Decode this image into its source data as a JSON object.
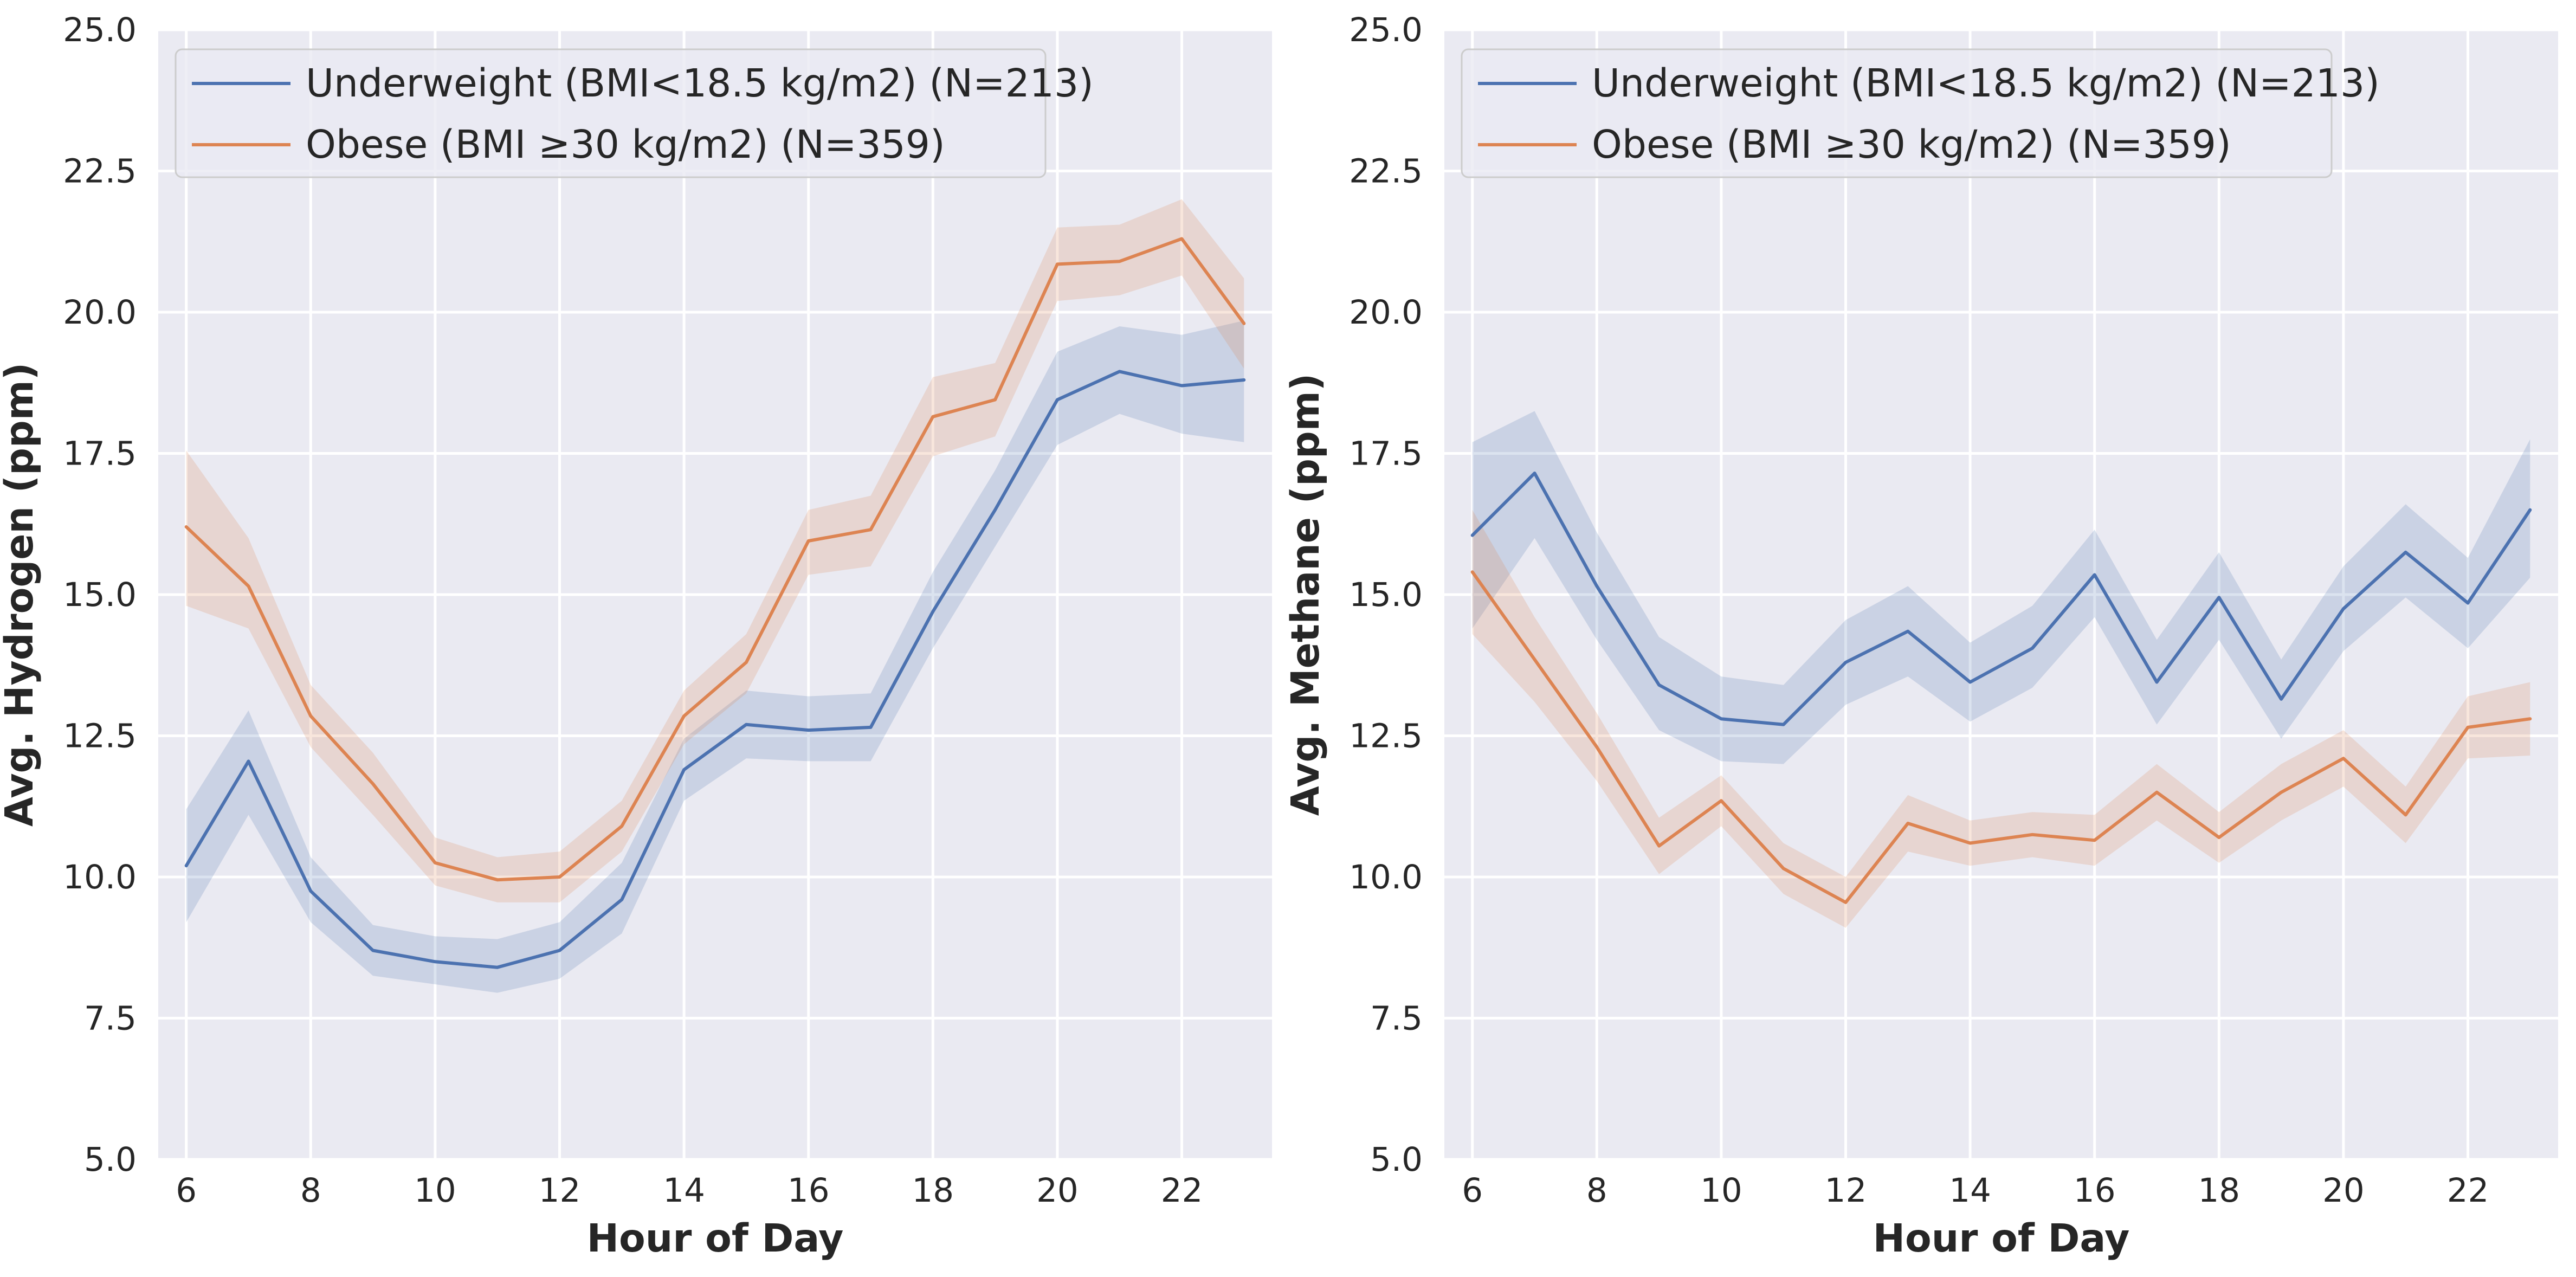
{
  "chart_data": [
    {
      "type": "line",
      "xlabel": "Hour of Day",
      "ylabel": "Avg. Hydrogen (ppm)",
      "xlim": [
        5.55,
        23.45
      ],
      "ylim": [
        5.0,
        25.0
      ],
      "xticks": [
        6,
        8,
        10,
        12,
        14,
        16,
        18,
        20,
        22
      ],
      "xtick_labels": [
        "6",
        "8",
        "10",
        "12",
        "14",
        "16",
        "18",
        "20",
        "22"
      ],
      "yticks": [
        5.0,
        7.5,
        10.0,
        12.5,
        15.0,
        17.5,
        20.0,
        22.5,
        25.0
      ],
      "ytick_labels": [
        "5.0",
        "7.5",
        "10.0",
        "12.5",
        "15.0",
        "17.5",
        "20.0",
        "22.5",
        "25.0"
      ],
      "grid": true,
      "legend_position": "top-left",
      "x": [
        6,
        7,
        8,
        9,
        10,
        11,
        12,
        13,
        14,
        15,
        16,
        17,
        18,
        19,
        20,
        21,
        22,
        23
      ],
      "series": [
        {
          "name": "Underweight (BMI<18.5 kg/m2) (N=213)",
          "color": "#4c72b0",
          "values": [
            10.2,
            12.05,
            9.75,
            8.7,
            8.5,
            8.4,
            8.7,
            9.6,
            11.9,
            12.7,
            12.6,
            12.65,
            14.7,
            16.5,
            18.45,
            18.95,
            18.7,
            18.8
          ],
          "ci_lower": [
            9.2,
            11.1,
            9.2,
            8.25,
            8.1,
            7.95,
            8.2,
            9.0,
            11.35,
            12.1,
            12.05,
            12.05,
            14.05,
            15.85,
            17.65,
            18.2,
            17.85,
            17.7
          ],
          "ci_upper": [
            11.2,
            12.95,
            10.35,
            9.15,
            8.95,
            8.9,
            9.2,
            10.25,
            12.45,
            13.3,
            13.2,
            13.25,
            15.4,
            17.2,
            19.3,
            19.75,
            19.6,
            19.85
          ]
        },
        {
          "name": "Obese (BMI ≥30 kg/m2) (N=359)",
          "color": "#dd8452",
          "values": [
            16.2,
            15.15,
            12.85,
            11.65,
            10.25,
            9.95,
            10.0,
            10.9,
            12.85,
            13.8,
            15.95,
            16.15,
            18.15,
            18.45,
            20.85,
            20.9,
            21.3,
            19.8
          ],
          "ci_lower": [
            14.8,
            14.4,
            12.3,
            11.1,
            9.85,
            9.55,
            9.55,
            10.45,
            12.35,
            13.25,
            15.35,
            15.5,
            17.45,
            17.8,
            20.2,
            20.3,
            20.65,
            19.0
          ],
          "ci_upper": [
            17.55,
            16.0,
            13.4,
            12.2,
            10.7,
            10.35,
            10.45,
            11.35,
            13.3,
            14.3,
            16.5,
            16.75,
            18.85,
            19.1,
            21.5,
            21.55,
            22.0,
            20.6
          ]
        }
      ]
    },
    {
      "type": "line",
      "xlabel": "Hour of Day",
      "ylabel": "Avg. Methane (ppm)",
      "xlim": [
        5.55,
        23.45
      ],
      "ylim": [
        5.0,
        25.0
      ],
      "xticks": [
        6,
        8,
        10,
        12,
        14,
        16,
        18,
        20,
        22
      ],
      "xtick_labels": [
        "6",
        "8",
        "10",
        "12",
        "14",
        "16",
        "18",
        "20",
        "22"
      ],
      "yticks": [
        5.0,
        7.5,
        10.0,
        12.5,
        15.0,
        17.5,
        20.0,
        22.5,
        25.0
      ],
      "ytick_labels": [
        "5.0",
        "7.5",
        "10.0",
        "12.5",
        "15.0",
        "17.5",
        "20.0",
        "22.5",
        "25.0"
      ],
      "grid": true,
      "legend_position": "top-left",
      "x": [
        6,
        7,
        8,
        9,
        10,
        11,
        12,
        13,
        14,
        15,
        16,
        17,
        18,
        19,
        20,
        21,
        22,
        23
      ],
      "series": [
        {
          "name": "Underweight (BMI<18.5 kg/m2) (N=213)",
          "color": "#4c72b0",
          "values": [
            16.05,
            17.15,
            15.15,
            13.4,
            12.8,
            12.7,
            13.8,
            14.35,
            13.45,
            14.05,
            15.35,
            13.45,
            14.95,
            13.15,
            14.75,
            15.75,
            14.85,
            16.5
          ],
          "ci_lower": [
            14.4,
            16.0,
            14.2,
            12.6,
            12.05,
            12.0,
            13.05,
            13.55,
            12.75,
            13.35,
            14.6,
            12.7,
            14.2,
            12.45,
            14.0,
            14.95,
            14.05,
            15.3
          ],
          "ci_upper": [
            17.7,
            18.25,
            16.1,
            14.25,
            13.55,
            13.4,
            14.55,
            15.15,
            14.15,
            14.8,
            16.15,
            14.2,
            15.75,
            13.85,
            15.5,
            16.6,
            15.65,
            17.75
          ]
        },
        {
          "name": "Obese (BMI ≥30 kg/m2) (N=359)",
          "color": "#dd8452",
          "values": [
            15.4,
            13.85,
            12.3,
            10.55,
            11.35,
            10.15,
            9.55,
            10.95,
            10.6,
            10.75,
            10.65,
            11.5,
            10.7,
            11.5,
            12.1,
            11.1,
            12.65,
            12.8
          ],
          "ci_lower": [
            14.3,
            13.1,
            11.7,
            10.05,
            10.9,
            9.7,
            9.1,
            10.45,
            10.2,
            10.35,
            10.2,
            11.0,
            10.25,
            11.0,
            11.6,
            10.6,
            12.1,
            12.15
          ],
          "ci_upper": [
            16.5,
            14.6,
            12.9,
            11.05,
            11.8,
            10.6,
            10.0,
            11.45,
            11.0,
            11.15,
            11.1,
            12.0,
            11.15,
            12.0,
            12.6,
            11.6,
            13.2,
            13.45
          ]
        }
      ]
    }
  ]
}
